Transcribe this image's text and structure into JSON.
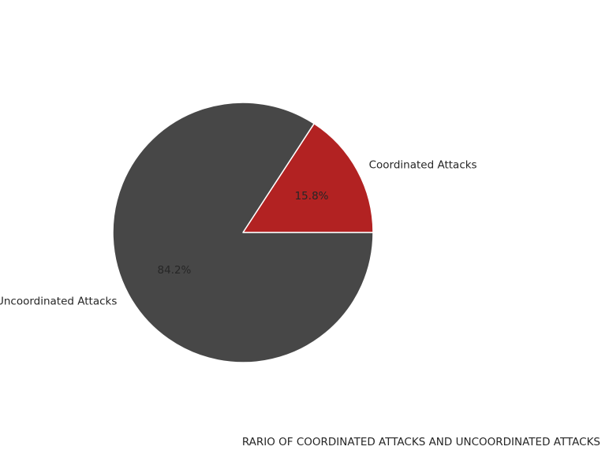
{
  "chart_data": {
    "type": "pie",
    "title": "",
    "caption": "RARIO OF COORDINATED ATTACKS AND UNCOORDINATED ATTACKS",
    "slices": [
      {
        "label": "Coordinated Attacks",
        "pct_label": "15.8%",
        "value": 15.8,
        "color": "#b22222"
      },
      {
        "label": "Uncoordinated Attacks",
        "pct_label": "84.2%",
        "value": 84.2,
        "color": "#474747"
      }
    ],
    "start_angle_deg": 0,
    "direction": "counterclockwise"
  }
}
